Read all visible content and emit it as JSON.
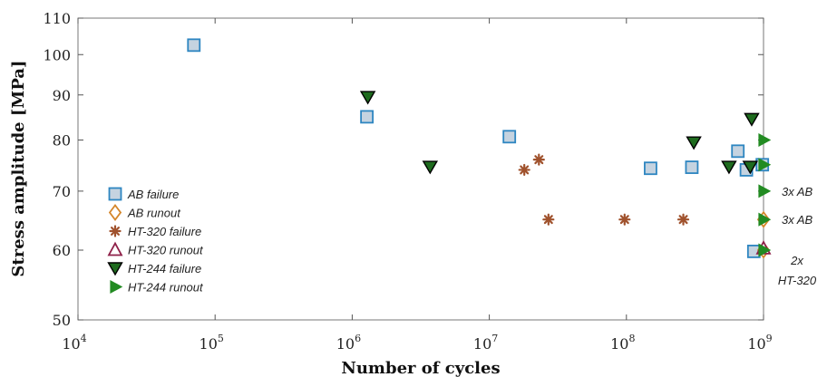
{
  "chart_data": {
    "type": "scatter",
    "xlabel": "Number of cycles",
    "ylabel": "Stress amplitude [MPa]",
    "xscale": "log",
    "yscale": "log",
    "xlim": [
      10000,
      1000000000
    ],
    "ylim": [
      50,
      110
    ],
    "x_ticks": [
      {
        "value": 10000,
        "base": "10",
        "exp": "4"
      },
      {
        "value": 100000,
        "base": "10",
        "exp": "5"
      },
      {
        "value": 1000000,
        "base": "10",
        "exp": "6"
      },
      {
        "value": 10000000,
        "base": "10",
        "exp": "7"
      },
      {
        "value": 100000000,
        "base": "10",
        "exp": "8"
      },
      {
        "value": 1000000000,
        "base": "10",
        "exp": "9"
      }
    ],
    "y_ticks": [
      {
        "value": 50,
        "label": "50"
      },
      {
        "value": 60,
        "label": "60"
      },
      {
        "value": 70,
        "label": "70"
      },
      {
        "value": 80,
        "label": "80"
      },
      {
        "value": 90,
        "label": "90"
      },
      {
        "value": 100,
        "label": "100"
      },
      {
        "value": 110,
        "label": "110"
      }
    ],
    "grid": false,
    "legend_position": "left",
    "series": [
      {
        "name": "AB failure",
        "marker": "square",
        "fill": "#c5d3e0",
        "stroke": "#2e86c1",
        "points": [
          [
            70000,
            102.5
          ],
          [
            1280000,
            85
          ],
          [
            14000000,
            80.7
          ],
          [
            150000000,
            74.3
          ],
          [
            300000000,
            74.5
          ],
          [
            650000000,
            77.7
          ],
          [
            750000000,
            74
          ],
          [
            850000000,
            59.8
          ],
          [
            980000000,
            75
          ]
        ]
      },
      {
        "name": "AB runout",
        "marker": "diamond",
        "fill": "#ffffff",
        "stroke": "#d4862a",
        "points": [
          [
            1000000000,
            65
          ],
          [
            1000000000,
            60
          ]
        ]
      },
      {
        "name": "HT-320 failure",
        "marker": "asterisk",
        "fill": "#a0522d",
        "stroke": "#a0522d",
        "points": [
          [
            18000000,
            74
          ],
          [
            23000000,
            76
          ],
          [
            27000000,
            65
          ],
          [
            97000000,
            65
          ],
          [
            260000000,
            65
          ]
        ]
      },
      {
        "name": "HT-320 runout",
        "marker": "triangle-up",
        "fill": "#ffffff",
        "stroke": "#8e2048",
        "points": [
          [
            1000000000,
            60.3
          ]
        ]
      },
      {
        "name": "HT-244 failure",
        "marker": "triangle-down",
        "fill": "#1e6b1e",
        "stroke": "#000000",
        "points": [
          [
            1300000,
            89.5
          ],
          [
            3700000,
            74.6
          ],
          [
            310000000,
            79.5
          ],
          [
            560000000,
            74.6
          ],
          [
            800000000,
            74.6
          ],
          [
            820000000,
            84.5
          ]
        ]
      },
      {
        "name": "HT-244 runout",
        "marker": "triangle-right",
        "fill": "#228b22",
        "stroke": "#228b22",
        "points": [
          [
            1000000000,
            80
          ],
          [
            1000000000,
            75
          ],
          [
            1000000000,
            70
          ],
          [
            1000000000,
            65
          ],
          [
            1000000000,
            60
          ]
        ]
      }
    ],
    "annotations": [
      {
        "lines": [
          "3x AB"
        ],
        "x": 1000000000,
        "y": 70
      },
      {
        "lines": [
          "3x AB"
        ],
        "x": 1000000000,
        "y": 65
      },
      {
        "lines": [
          "2x",
          "HT-320"
        ],
        "x": 1000000000,
        "y": 60
      }
    ]
  }
}
